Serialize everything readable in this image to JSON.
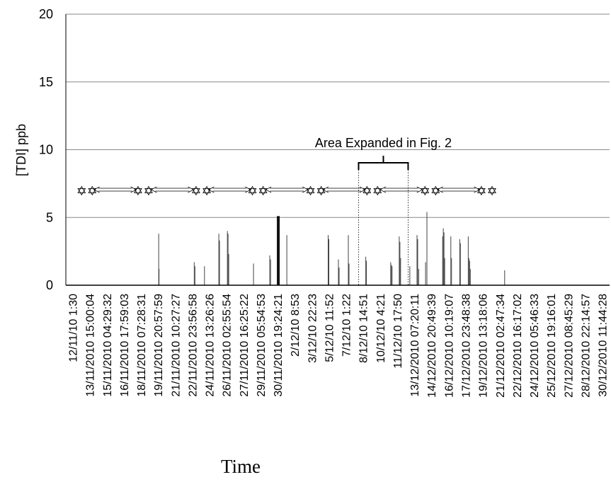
{
  "chart_data": {
    "type": "bar",
    "ylabel": "[TDI] ppb",
    "xlabel": "Time",
    "ylim": [
      0,
      20
    ],
    "yticks": [
      0,
      5,
      10,
      15,
      20
    ],
    "grid": true,
    "annotation": "Area Expanded in Fig. 2",
    "categories": [
      "12/11/10 1:30",
      "13/11/2010 15:00:04",
      "15/11/2010 04:29:32",
      "16/11/2010 17:59:03",
      "18/11/2010 07:28:31",
      "19/11/2010 20:57:59",
      "21/11/2010 10:27:27",
      "22/11/2010 23:56:58",
      "24/11/2010 13:26:26",
      "26/11/2010 02:55:54",
      "27/11/2010 16:25:22",
      "29/11/2010 05:54:53",
      "30/11/2010 19:24:21",
      "2/12/10 8:53",
      "3/12/10 22:23",
      "5/12/10 11:52",
      "7/12/10 1:22",
      "8/12/10 14:51",
      "10/12/10 4:21",
      "11/12/10 17:50",
      "13/12/2010 07:20:11",
      "14/12/2010 20:49:39",
      "16/12/2010 10:19:07",
      "17/12/2010 23:48:38",
      "19/12/2010 13:18:06",
      "21/12/2010 02:47:34",
      "22/12/2010 16:17:02",
      "24/12/2010 05:46:33",
      "25/12/2010 19:16:01",
      "27/12/2010 08:45:29",
      "28/12/2010 22:14:57",
      "30/12/2010 11:44:28"
    ],
    "spikes": [
      {
        "pos": 5.0,
        "value": 3.8
      },
      {
        "pos": 5.02,
        "value": 1.2
      },
      {
        "pos": 7.08,
        "value": 1.7
      },
      {
        "pos": 7.12,
        "value": 1.4
      },
      {
        "pos": 7.68,
        "value": 1.4
      },
      {
        "pos": 8.52,
        "value": 3.8
      },
      {
        "pos": 8.56,
        "value": 3.3
      },
      {
        "pos": 9.02,
        "value": 4.0
      },
      {
        "pos": 9.06,
        "value": 3.8
      },
      {
        "pos": 9.1,
        "value": 2.3
      },
      {
        "pos": 10.55,
        "value": 1.6
      },
      {
        "pos": 11.5,
        "value": 2.2
      },
      {
        "pos": 11.55,
        "value": 1.9
      },
      {
        "pos": 12.0,
        "value": 5.1,
        "thick": true
      },
      {
        "pos": 12.5,
        "value": 3.7
      },
      {
        "pos": 14.92,
        "value": 3.7
      },
      {
        "pos": 14.96,
        "value": 3.4
      },
      {
        "pos": 15.52,
        "value": 1.9
      },
      {
        "pos": 15.56,
        "value": 1.3
      },
      {
        "pos": 16.1,
        "value": 3.7
      },
      {
        "pos": 16.14,
        "value": 1.6
      },
      {
        "pos": 17.12,
        "value": 2.1
      },
      {
        "pos": 17.16,
        "value": 1.8
      },
      {
        "pos": 18.58,
        "value": 1.7
      },
      {
        "pos": 18.62,
        "value": 1.5
      },
      {
        "pos": 18.66,
        "value": 1.4
      },
      {
        "pos": 19.08,
        "value": 3.6
      },
      {
        "pos": 19.12,
        "value": 3.2
      },
      {
        "pos": 19.16,
        "value": 2.0
      },
      {
        "pos": 19.7,
        "value": 1.4
      },
      {
        "pos": 20.12,
        "value": 3.7
      },
      {
        "pos": 20.16,
        "value": 3.4
      },
      {
        "pos": 20.22,
        "value": 1.2
      },
      {
        "pos": 20.62,
        "value": 1.7
      },
      {
        "pos": 20.7,
        "value": 5.4
      },
      {
        "pos": 21.62,
        "value": 3.6
      },
      {
        "pos": 21.66,
        "value": 4.2
      },
      {
        "pos": 21.7,
        "value": 3.9
      },
      {
        "pos": 21.74,
        "value": 2.0
      },
      {
        "pos": 22.1,
        "value": 3.6
      },
      {
        "pos": 22.14,
        "value": 2.0
      },
      {
        "pos": 22.62,
        "value": 3.4
      },
      {
        "pos": 22.66,
        "value": 3.1
      },
      {
        "pos": 23.12,
        "value": 3.6
      },
      {
        "pos": 23.16,
        "value": 2.0
      },
      {
        "pos": 23.2,
        "value": 1.8
      },
      {
        "pos": 23.24,
        "value": 1.2
      },
      {
        "pos": 25.25,
        "value": 1.1
      }
    ]
  },
  "decorations": {
    "star_pair": "✡✡",
    "arrow": "⟸⟹",
    "star_group_positions": [
      0.8,
      4.1,
      7.5,
      10.8,
      14.2,
      17.5,
      20.9,
      24.2
    ],
    "arrow_positions": [
      2.45,
      5.8,
      9.15,
      12.5,
      15.85,
      19.2,
      22.55
    ],
    "bracket_range": [
      16.7,
      19.6
    ]
  }
}
